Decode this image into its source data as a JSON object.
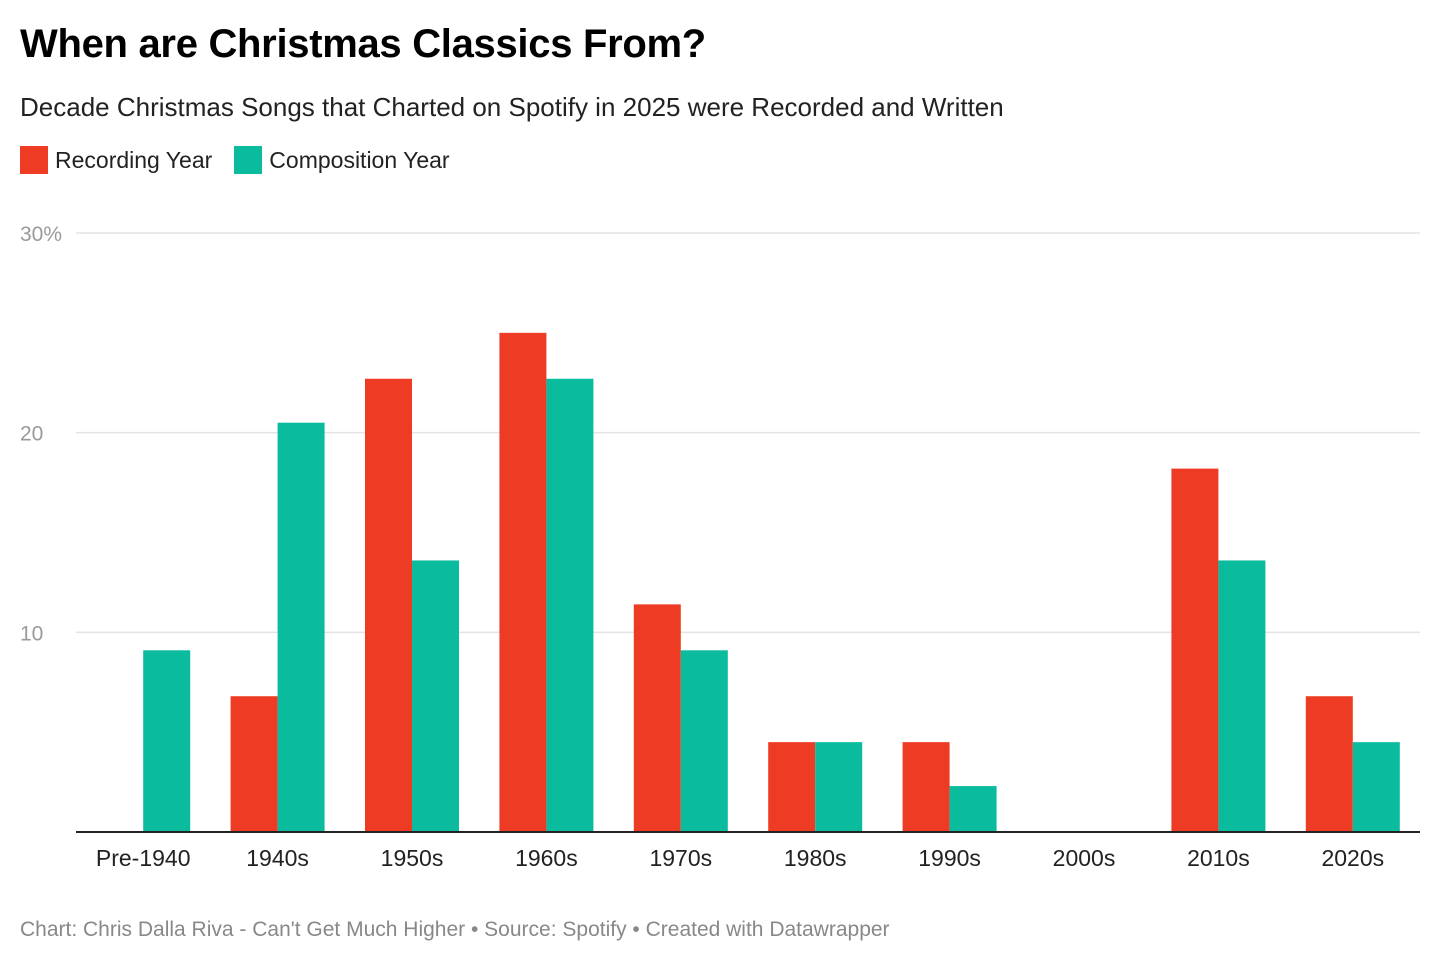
{
  "chart_data": {
    "type": "bar",
    "title": "When are Christmas Classics From?",
    "subtitle": "Decade Christmas Songs that Charted on Spotify in 2025 were Recorded and Written",
    "categories": [
      "Pre-1940",
      "1940s",
      "1950s",
      "1960s",
      "1970s",
      "1980s",
      "1990s",
      "2000s",
      "2010s",
      "2020s"
    ],
    "series": [
      {
        "name": "Recording Year",
        "color": "#ee3b23",
        "values": [
          0,
          6.8,
          22.7,
          25.0,
          11.4,
          4.5,
          4.5,
          0,
          18.2,
          6.8
        ]
      },
      {
        "name": "Composition Year",
        "color": "#0bbb9d",
        "values": [
          9.1,
          20.5,
          13.6,
          22.7,
          9.1,
          4.5,
          2.3,
          0,
          13.6,
          4.5
        ]
      }
    ],
    "ylim": [
      0,
      30
    ],
    "yticks": [
      {
        "value": 10,
        "label": "10"
      },
      {
        "value": 20,
        "label": "20"
      },
      {
        "value": 30,
        "label": "30%"
      }
    ],
    "legend_position": "top-left",
    "footer": "Chart: Chris Dalla Riva - Can't Get Much Higher • Source: Spotify • Created with Datawrapper"
  }
}
